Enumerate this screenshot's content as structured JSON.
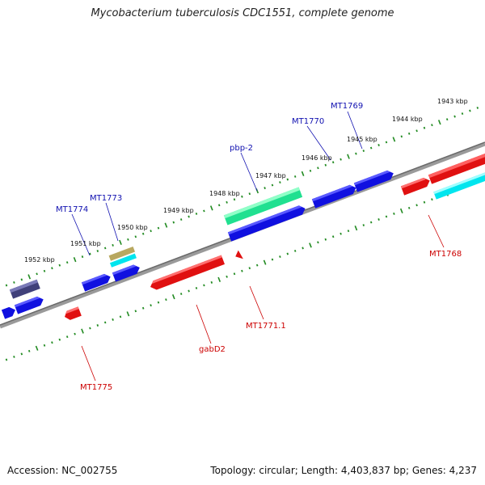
{
  "title": "Mycobacterium tuberculosis CDC1551, complete genome",
  "footer": {
    "accession": "Accession: NC_002755",
    "stats": "Topology: circular; Length: 4,403,837 bp; Genes: 4,237"
  },
  "colors": {
    "backbone": "#7a7a7a",
    "ticks": "#228b22",
    "forward_gene": "#1010e0",
    "reverse_gene": "#e01010",
    "rna": "#20e090",
    "pseudo": "#00e5ee",
    "other": "#40407a",
    "misc": "#b8a860"
  },
  "kbp_labels": [
    "1943 kbp",
    "1944 kbp",
    "1945 kbp",
    "1946 kbp",
    "1947 kbp",
    "1948 kbp",
    "1949 kbp",
    "1950 kbp",
    "1951 kbp",
    "1952 kbp"
  ],
  "forward_gene_labels": [
    "MT1769",
    "MT1770",
    "pbp-2",
    "MT1773",
    "MT1774"
  ],
  "reverse_gene_labels": [
    "MT1768",
    "MT1771.1",
    "gabD2",
    "MT1775"
  ]
}
